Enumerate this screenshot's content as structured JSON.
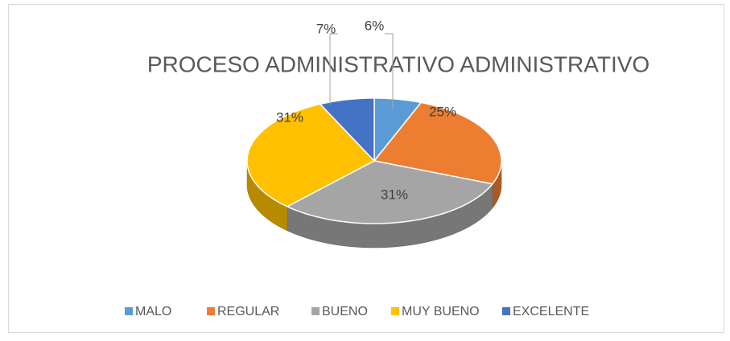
{
  "chart_data": {
    "type": "pie3d",
    "title": "PROCESO ADMINISTRATIVO ADMINISTRATIVO",
    "categories": [
      "MALO",
      "REGULAR",
      "BUENO",
      "MUY BUENO",
      "EXCELENTE"
    ],
    "values": [
      6,
      25,
      31,
      31,
      7
    ],
    "value_labels": [
      "6%",
      "25%",
      "31%",
      "31%",
      "7%"
    ],
    "colors": [
      "#5b9bd5",
      "#ed7d31",
      "#a5a5a5",
      "#ffc000",
      "#4472c4"
    ],
    "legend": "bottom"
  }
}
